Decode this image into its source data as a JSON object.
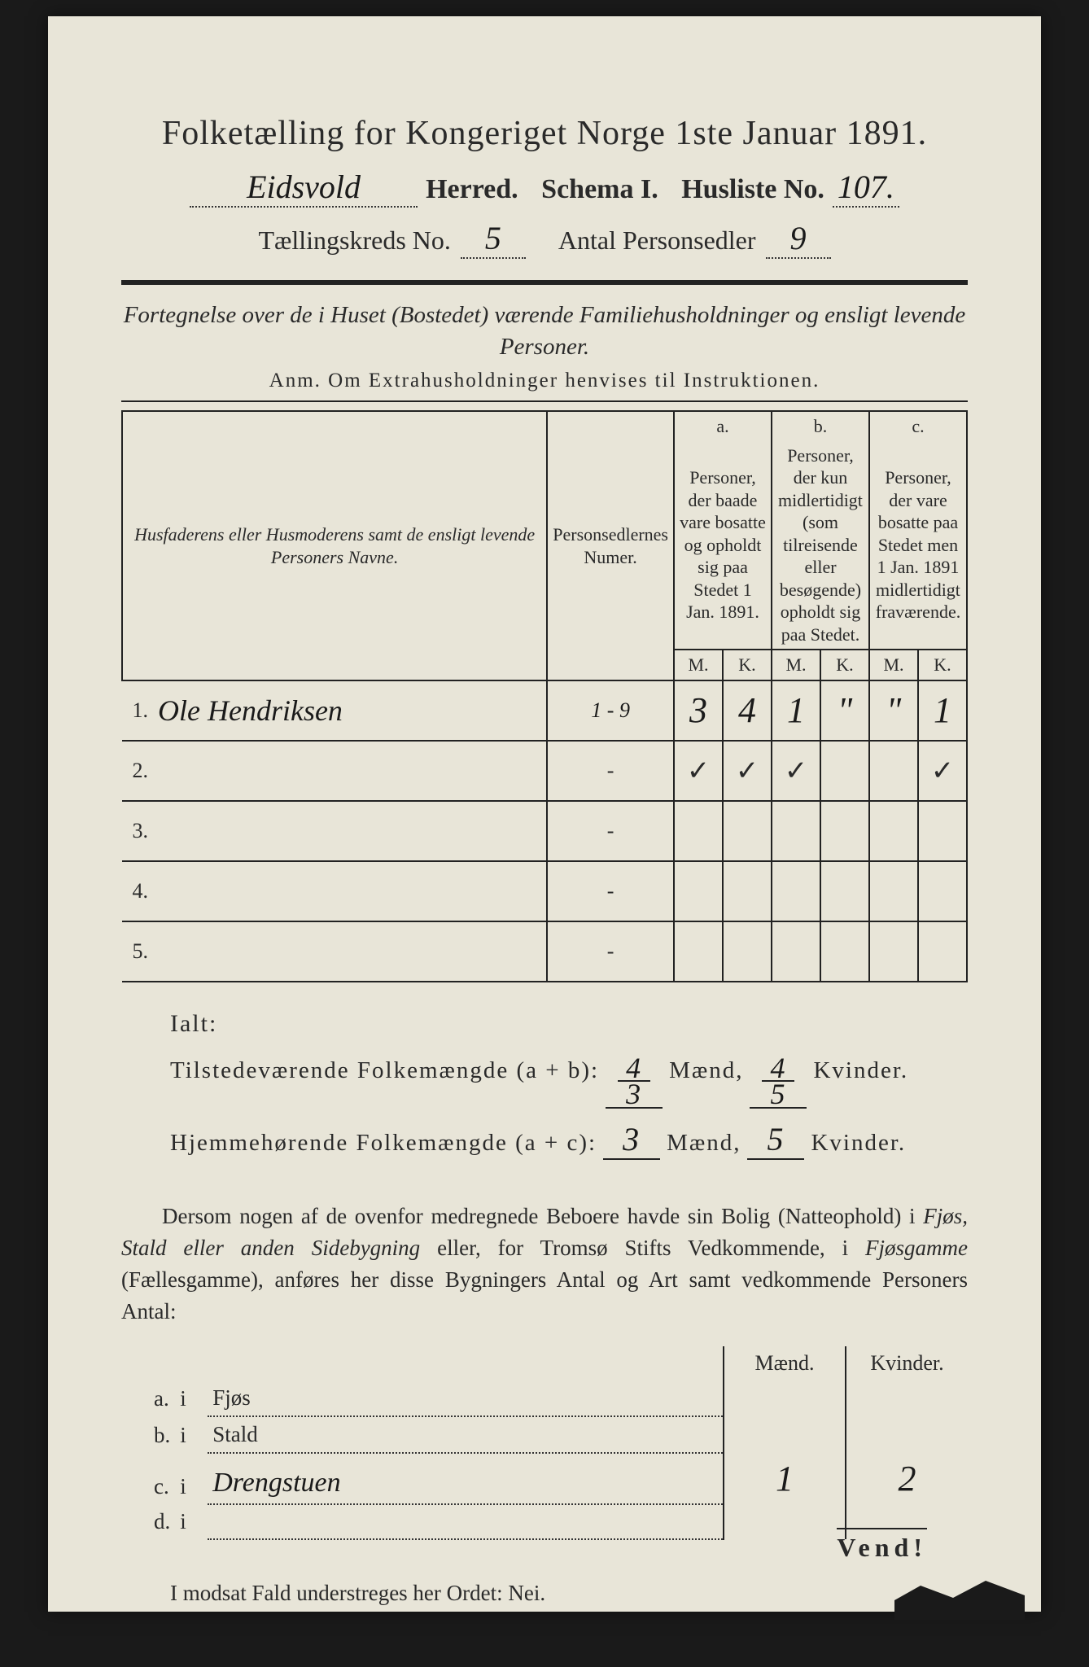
{
  "header": {
    "title": "Folketælling for Kongeriget Norge 1ste Januar 1891.",
    "herred_value": "Eidsvold",
    "herred_label": "Herred.",
    "schema_label": "Schema I.",
    "husliste_label": "Husliste No.",
    "husliste_value": "107.",
    "kreds_label": "Tællingskreds No.",
    "kreds_value": "5",
    "personsedler_label": "Antal Personsedler",
    "personsedler_value": "9"
  },
  "subheading": "Fortegnelse over de i Huset (Bostedet) værende Familiehusholdninger og ensligt levende Personer.",
  "anm": "Anm.  Om Extrahusholdninger henvises til Instruktionen.",
  "table": {
    "col_name": "Husfaderens eller Husmoderens samt de ensligt levende Personers Navne.",
    "col_numer": "Personsedlernes Numer.",
    "col_a_tag": "a.",
    "col_a": "Personer, der baade vare bosatte og opholdt sig paa Stedet 1 Jan. 1891.",
    "col_b_tag": "b.",
    "col_b": "Personer, der kun midlertidigt (som tilreisende eller besøgende) opholdt sig paa Stedet.",
    "col_c_tag": "c.",
    "col_c": "Personer, der vare bosatte paa Stedet men 1 Jan. 1891 midlertidigt fraværende.",
    "M": "M.",
    "K": "K.",
    "rows": [
      {
        "n": "1.",
        "name": "Ole Hendriksen",
        "numer": "1 - 9",
        "aM": "3",
        "aK": "4",
        "bM": "1",
        "bK": "\"",
        "cM": "\"",
        "cK": "1"
      },
      {
        "n": "2.",
        "name": "",
        "numer": "-",
        "aM": "✓",
        "aK": "✓",
        "bM": "✓",
        "bK": "",
        "cM": "",
        "cK": "✓"
      },
      {
        "n": "3.",
        "name": "",
        "numer": "-",
        "aM": "",
        "aK": "",
        "bM": "",
        "bK": "",
        "cM": "",
        "cK": ""
      },
      {
        "n": "4.",
        "name": "",
        "numer": "-",
        "aM": "",
        "aK": "",
        "bM": "",
        "bK": "",
        "cM": "",
        "cK": ""
      },
      {
        "n": "5.",
        "name": "",
        "numer": "-",
        "aM": "",
        "aK": "",
        "bM": "",
        "bK": "",
        "cM": "",
        "cK": ""
      }
    ]
  },
  "ialt": {
    "label": "Ialt:",
    "line1_label": "Tilstedeværende Folkemængde (a + b):",
    "line1_m_top": "4",
    "line1_m_bot": "3",
    "line1_k_top": "4",
    "line1_k_bot": "5",
    "line2_label": "Hjemmehørende Folkemængde (a + c):",
    "line2_m": "3",
    "line2_k": "5",
    "maend": "Mænd,",
    "kvinder": "Kvinder."
  },
  "para": {
    "t1": "Dersom nogen af de ovenfor medregnede Beboere havde sin Bolig (Natteophold) i ",
    "it1": "Fjøs, Stald eller anden Sidebygning",
    "t2": " eller, for Tromsø Stifts Vedkommende, i ",
    "it2": "Fjøsgamme",
    "t3": " (Fællesgamme), anføres her disse Bygningers Antal og Art samt vedkommende Personers Antal:"
  },
  "subtable": {
    "maend": "Mænd.",
    "kvinder": "Kvinder.",
    "rows": [
      {
        "letter": "a.",
        "i": "i",
        "desc": "Fjøs",
        "m": "",
        "k": ""
      },
      {
        "letter": "b.",
        "i": "i",
        "desc": "Stald",
        "m": "",
        "k": ""
      },
      {
        "letter": "c.",
        "i": "i",
        "desc": "Drengstuen",
        "m": "1",
        "k": "2"
      },
      {
        "letter": "d.",
        "i": "i",
        "desc": "",
        "m": "",
        "k": ""
      }
    ]
  },
  "final": "I modsat Fald understreges her Ordet: Nei.",
  "vend": "Vend!",
  "colors": {
    "paper": "#e8e5d8",
    "ink": "#2a2a2a",
    "bg": "#1a1a1a"
  }
}
